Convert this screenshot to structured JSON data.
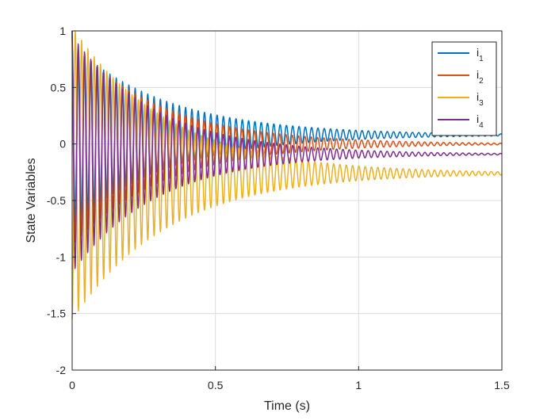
{
  "chart_data": {
    "type": "line",
    "title": "",
    "xlabel": "Time (s)",
    "ylabel": "State Variables",
    "xlim": [
      0,
      1.5
    ],
    "ylim": [
      -2,
      1
    ],
    "xticks": [
      0,
      0.5,
      1,
      1.5
    ],
    "xtick_labels": [
      "0",
      "0.5",
      "1",
      "1.5"
    ],
    "yticks": [
      -2,
      -1.5,
      -1,
      -0.5,
      0,
      0.5,
      1
    ],
    "ytick_labels": [
      "-2",
      "-1.5",
      "-1",
      "-0.5",
      "0",
      "0.5",
      "1"
    ],
    "grid": true,
    "legend_position": "top-right",
    "series": [
      {
        "name": "i1",
        "base": "i",
        "sub": "1",
        "color": "#0072BD",
        "initial": 1.0,
        "amplitude": 0.8,
        "final": 0.08,
        "decay": 3.0,
        "period": 0.022,
        "phase": 0
      },
      {
        "name": "i2",
        "base": "i",
        "sub": "2",
        "color": "#D95319",
        "initial": 0.95,
        "amplitude": 0.9,
        "final": 0.0,
        "decay": 3.2,
        "period": 0.022,
        "phase": 0.4
      },
      {
        "name": "i3",
        "base": "i",
        "sub": "3",
        "color": "#EDB120",
        "initial": -1.55,
        "amplitude": 1.3,
        "final": -0.26,
        "decay": 3.0,
        "period": 0.022,
        "phase": 3.1416
      },
      {
        "name": "i4",
        "base": "i",
        "sub": "4",
        "color": "#7E2F8E",
        "initial": 1.0,
        "amplitude": 1.05,
        "final": -0.09,
        "decay": 3.4,
        "period": 0.022,
        "phase": 0.2
      }
    ]
  }
}
